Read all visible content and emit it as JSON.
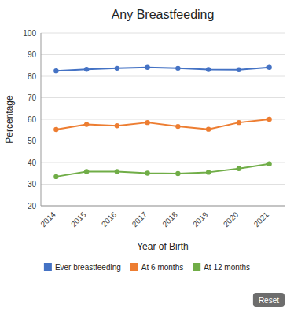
{
  "chart_data": {
    "type": "line",
    "title": "Any Breastfeeding",
    "x_label": "Year of Birth",
    "y_label": "Percentage",
    "categories": [
      "2014",
      "2015",
      "2016",
      "2017",
      "2018",
      "2019",
      "2020",
      "2021"
    ],
    "series": [
      {
        "name": "Ever breastfeeding",
        "color": "#4472c4",
        "marker": "circle",
        "values": [
          82.5,
          83.2,
          83.7,
          84.1,
          83.7,
          83.1,
          83.0,
          84.1
        ]
      },
      {
        "name": "At 6 months",
        "color": "#ed7d31",
        "marker": "circle",
        "values": [
          55.3,
          57.6,
          57.0,
          58.5,
          56.7,
          55.4,
          58.5,
          60.0
        ]
      },
      {
        "name": "At 12 months",
        "color": "#70ad47",
        "marker": "circle",
        "values": [
          33.5,
          35.8,
          35.8,
          35.1,
          34.9,
          35.5,
          37.2,
          39.4
        ]
      }
    ],
    "ylim": [
      20,
      100
    ],
    "yticks": [
      20,
      30,
      40,
      50,
      60,
      70,
      80,
      90,
      100
    ],
    "grid": true,
    "legend": "bottom",
    "annotations": [
      {
        "text": "Reset",
        "color": "#6d6d6d"
      }
    ]
  }
}
